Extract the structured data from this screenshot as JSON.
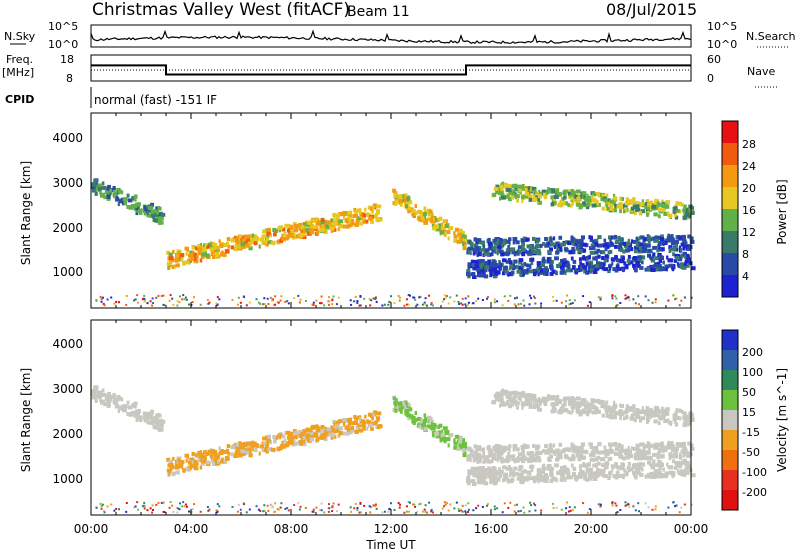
{
  "header": {
    "station": "Christmas Valley West (fitACF)",
    "beam": "Beam 11",
    "date": "08/Jul/2015"
  },
  "noise_panel": {
    "left_label": "N.Sky",
    "right_label": "N.Search",
    "left_ticks": [
      "10^5",
      "10^0"
    ],
    "right_ticks": [
      "10^5",
      "10^0"
    ]
  },
  "freq_panel": {
    "left_label_1": "Freq.",
    "left_label_2": "[MHz]",
    "right_label": "Nave",
    "left_ticks": [
      "18",
      "8"
    ],
    "right_ticks": [
      "60",
      "0"
    ],
    "cpid_label": "CPID",
    "cpid_text": "normal (fast) -151 IF"
  },
  "x_axis": {
    "label": "Time UT",
    "ticks": [
      "00:00",
      "04:00",
      "08:00",
      "12:00",
      "16:00",
      "20:00",
      "00:00"
    ]
  },
  "power_panel": {
    "ylabel": "Slant Range [km]",
    "yticks": [
      "1000",
      "2000",
      "3000",
      "4000"
    ],
    "colorbar_label": "Power [dB]",
    "colorbar_ticks": [
      "4",
      "8",
      "12",
      "16",
      "20",
      "24",
      "28"
    ],
    "colors": [
      "#1f22d0",
      "#2a4aa8",
      "#3a7a6a",
      "#62b04a",
      "#e6c820",
      "#f39a10",
      "#f25a10",
      "#e81010"
    ]
  },
  "velocity_panel": {
    "ylabel": "Slant Range [km]",
    "yticks": [
      "1000",
      "2000",
      "3000",
      "4000"
    ],
    "colorbar_label": "Velocity [m s^-1]",
    "colorbar_ticks": [
      "200",
      "100",
      "50",
      "15",
      "-15",
      "-50",
      "-100",
      "-200"
    ],
    "colors": [
      "#2030c8",
      "#3060a8",
      "#2e8a5a",
      "#6cc23c",
      "#c8c8c0",
      "#f0a020",
      "#f07010",
      "#e83020",
      "#e01010"
    ]
  },
  "chart_data": {
    "type": "heatmap",
    "title": "Christmas Valley West (fitACF) Beam 11 08/Jul/2015",
    "xlabel": "Time UT",
    "ylabel": "Slant Range [km]",
    "xlim_hours": [
      0,
      24
    ],
    "ylim_km": [
      180,
      4600
    ],
    "frequency_mhz": [
      {
        "start_hour": 0,
        "end_hour": 3,
        "value": 14
      },
      {
        "start_hour": 3,
        "end_hour": 15,
        "value": 10.5
      },
      {
        "start_hour": 15,
        "end_hour": 24,
        "value": 14
      }
    ],
    "scatter_bands": [
      {
        "name": "early",
        "start_hour": 0.0,
        "end_hour": 2.8,
        "range_start_km": 3000,
        "range_end_km": 2300,
        "power_db": 18,
        "velocity_ms": 0
      },
      {
        "name": "morning",
        "start_hour": 3.0,
        "end_hour": 11.5,
        "range_start_km": 1300,
        "range_end_km": 2400,
        "power_db": 27,
        "velocity_ms": -20
      },
      {
        "name": "afternoon",
        "start_hour": 12.0,
        "end_hour": 15.0,
        "range_start_km": 2800,
        "range_end_km": 1700,
        "power_db": 26,
        "velocity_ms": 20
      },
      {
        "name": "evening",
        "start_hour": 16.0,
        "end_hour": 24.0,
        "range_start_km": 2900,
        "range_end_km": 2400,
        "power_db": 22,
        "velocity_ms": 0
      },
      {
        "name": "evening_low",
        "start_hour": 15.0,
        "end_hour": 24.0,
        "range_start_km": 1600,
        "range_end_km": 1700,
        "power_db": 14,
        "velocity_ms": 0
      },
      {
        "name": "evening_lowest",
        "start_hour": 15.0,
        "end_hour": 24.0,
        "range_start_km": 1100,
        "range_end_km": 1300,
        "power_db": 12,
        "velocity_ms": 0
      }
    ]
  }
}
